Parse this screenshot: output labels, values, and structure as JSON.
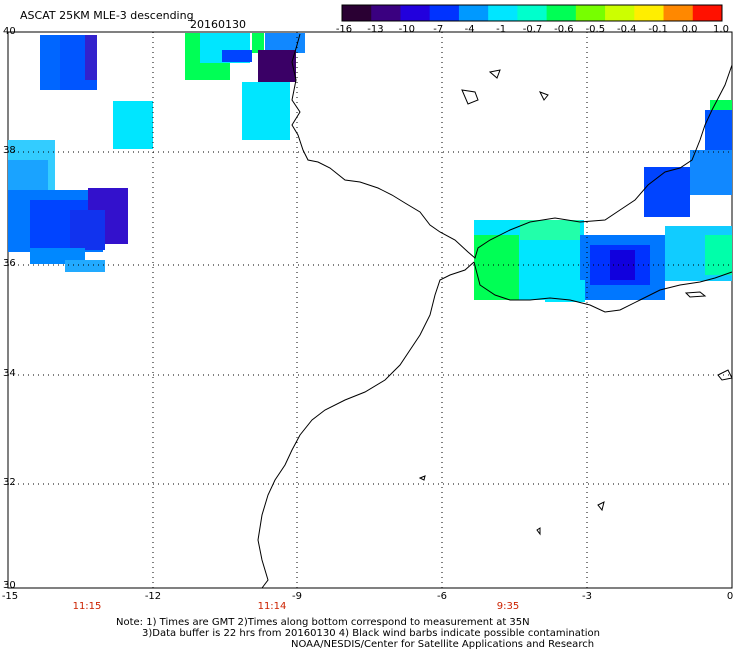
{
  "title": "ASCAT 25KM MLE-3 descending",
  "date": "20160130",
  "colorbar": {
    "labels": [
      "-16",
      "-13",
      "-10",
      "-7",
      "-4",
      "-1",
      "-0.7",
      "-0.6",
      "-0.5",
      "-0.4",
      "-0.1",
      "0.0",
      "1.0"
    ],
    "colors": [
      "#2a0033",
      "#3a0080",
      "#2200dd",
      "#0033ff",
      "#0099ff",
      "#00e6ff",
      "#00ffcc",
      "#00ff55",
      "#77ff00",
      "#ccff00",
      "#ffee00",
      "#ff8800",
      "#ff1100"
    ]
  },
  "lat_labels": [
    "40",
    "38",
    "36",
    "34",
    "32",
    "30"
  ],
  "lon_labels": [
    "-15",
    "-12",
    "-9",
    "-6",
    "-3",
    "0"
  ],
  "time_labels": [
    "11:15",
    "11:14",
    "9:35"
  ],
  "notes": [
    "Note: 1) Times are GMT 2)Times along bottom correspond to measurement at 35N",
    "3)Data buffer is 22 hrs from 20160130 4) Black wind barbs indicate possible contamination",
    "NOAA/NESDIS/Center for Satellite Applications and Research"
  ]
}
